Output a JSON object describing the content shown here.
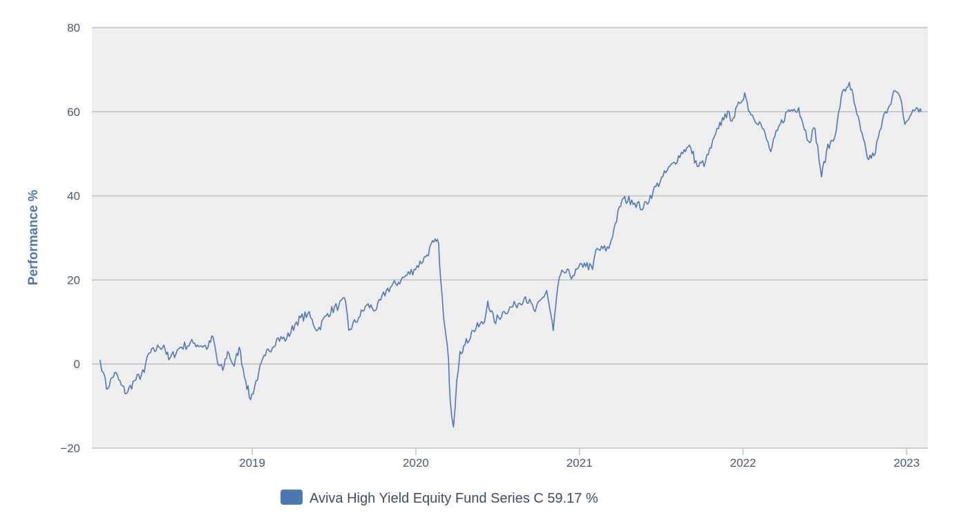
{
  "chart_data": {
    "type": "line",
    "title": "",
    "xlabel": "",
    "ylabel": "Performance %",
    "xlim": [
      2018.02,
      2023.13
    ],
    "ylim": [
      -20,
      80
    ],
    "y_ticks": [
      {
        "value": 80,
        "label": "80"
      },
      {
        "value": 60,
        "label": "60"
      },
      {
        "value": 40,
        "label": "40"
      },
      {
        "value": 20,
        "label": "20"
      },
      {
        "value": 0,
        "label": "0"
      },
      {
        "value": -20,
        "label": "−20"
      }
    ],
    "x_ticks": [
      {
        "value": 2019,
        "label": "2019"
      },
      {
        "value": 2020,
        "label": "2020"
      },
      {
        "value": 2021,
        "label": "2021"
      },
      {
        "value": 2022,
        "label": "2022"
      },
      {
        "value": 2023,
        "label": "2023"
      }
    ],
    "grid": true,
    "legend_position": "bottom-center",
    "series": [
      {
        "name": "Aviva High Yield Equity Fund Series C 59.17 %",
        "color": "#4f77b4",
        "points": [
          [
            2018.07,
            1
          ],
          [
            2018.09,
            -2
          ],
          [
            2018.11,
            -6
          ],
          [
            2018.16,
            -2
          ],
          [
            2018.2,
            -5
          ],
          [
            2018.23,
            -7
          ],
          [
            2018.28,
            -4
          ],
          [
            2018.34,
            -2
          ],
          [
            2018.36,
            2
          ],
          [
            2018.43,
            4
          ],
          [
            2018.46,
            4.5
          ],
          [
            2018.49,
            1
          ],
          [
            2018.56,
            4
          ],
          [
            2018.64,
            5
          ],
          [
            2018.73,
            4
          ],
          [
            2018.76,
            6.5
          ],
          [
            2018.79,
            0
          ],
          [
            2018.82,
            -1.5
          ],
          [
            2018.85,
            3
          ],
          [
            2018.89,
            -0.5
          ],
          [
            2018.92,
            4
          ],
          [
            2018.96,
            -4
          ],
          [
            2018.99,
            -8.5
          ],
          [
            2019.04,
            -2
          ],
          [
            2019.08,
            2
          ],
          [
            2019.15,
            6
          ],
          [
            2019.21,
            6
          ],
          [
            2019.27,
            10
          ],
          [
            2019.34,
            12
          ],
          [
            2019.4,
            8
          ],
          [
            2019.46,
            12
          ],
          [
            2019.53,
            14
          ],
          [
            2019.57,
            15
          ],
          [
            2019.59,
            8
          ],
          [
            2019.65,
            11
          ],
          [
            2019.7,
            14
          ],
          [
            2019.76,
            13
          ],
          [
            2019.82,
            17.5
          ],
          [
            2019.91,
            20
          ],
          [
            2019.99,
            22.5
          ],
          [
            2020.06,
            25.5
          ],
          [
            2020.11,
            29
          ],
          [
            2020.14,
            28.5
          ],
          [
            2020.15,
            21
          ],
          [
            2020.17,
            11
          ],
          [
            2020.2,
            1
          ],
          [
            2020.21,
            -8.5
          ],
          [
            2020.23,
            -15
          ],
          [
            2020.25,
            -4
          ],
          [
            2020.27,
            3
          ],
          [
            2020.3,
            4.5
          ],
          [
            2020.35,
            8
          ],
          [
            2020.42,
            10
          ],
          [
            2020.44,
            15
          ],
          [
            2020.48,
            10
          ],
          [
            2020.54,
            12.5
          ],
          [
            2020.61,
            14
          ],
          [
            2020.67,
            16
          ],
          [
            2020.73,
            12.5
          ],
          [
            2020.8,
            17.5
          ],
          [
            2020.84,
            8
          ],
          [
            2020.87,
            19
          ],
          [
            2020.9,
            22
          ],
          [
            2020.96,
            21
          ],
          [
            2021.03,
            24
          ],
          [
            2021.08,
            22.5
          ],
          [
            2021.1,
            27
          ],
          [
            2021.18,
            27.5
          ],
          [
            2021.21,
            32
          ],
          [
            2021.26,
            39
          ],
          [
            2021.32,
            39
          ],
          [
            2021.39,
            37
          ],
          [
            2021.45,
            41
          ],
          [
            2021.51,
            44.5
          ],
          [
            2021.58,
            48
          ],
          [
            2021.64,
            51
          ],
          [
            2021.68,
            51.5
          ],
          [
            2021.72,
            47
          ],
          [
            2021.77,
            48
          ],
          [
            2021.85,
            56
          ],
          [
            2021.89,
            59.5
          ],
          [
            2021.94,
            58.5
          ],
          [
            2021.98,
            62
          ],
          [
            2022.01,
            64.5
          ],
          [
            2022.04,
            60
          ],
          [
            2022.11,
            57
          ],
          [
            2022.17,
            50.5
          ],
          [
            2022.21,
            55.5
          ],
          [
            2022.27,
            60
          ],
          [
            2022.34,
            61
          ],
          [
            2022.4,
            53
          ],
          [
            2022.44,
            56
          ],
          [
            2022.48,
            44.5
          ],
          [
            2022.51,
            50.5
          ],
          [
            2022.57,
            55.5
          ],
          [
            2022.6,
            63.5
          ],
          [
            2022.65,
            67
          ],
          [
            2022.68,
            62
          ],
          [
            2022.72,
            55.5
          ],
          [
            2022.76,
            49
          ],
          [
            2022.8,
            49.5
          ],
          [
            2022.87,
            60
          ],
          [
            2022.93,
            65
          ],
          [
            2022.97,
            62
          ],
          [
            2022.99,
            57
          ],
          [
            2023.03,
            59.5
          ],
          [
            2023.06,
            61
          ],
          [
            2023.09,
            60
          ]
        ]
      }
    ]
  }
}
